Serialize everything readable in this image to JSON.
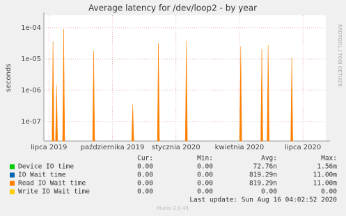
{
  "chart_data": {
    "type": "spike",
    "title": "Average latency for /dev/loop2 - by year",
    "y_label": "seconds",
    "side_label": "RRDTOOL / TOBI OETIKER",
    "log_y": true,
    "grid": true,
    "ylim": [
      2.4e-08,
      0.00025
    ],
    "yticks": [
      {
        "value": 1e-07,
        "label": "1e-07"
      },
      {
        "value": 1e-06,
        "label": "1e-06"
      },
      {
        "value": 1e-05,
        "label": "1e-05"
      },
      {
        "value": 0.0001,
        "label": "1e-04"
      }
    ],
    "xlim": [
      2019.48,
      2020.59
    ],
    "xticks": [
      {
        "value": 2019.5,
        "label": "lipca 2019"
      },
      {
        "value": 2019.75,
        "label": "października 2019"
      },
      {
        "value": 2020.0,
        "label": "stycznia 2020"
      },
      {
        "value": 2020.25,
        "label": "kwietnia 2020"
      },
      {
        "value": 2020.5,
        "label": "lipca 2020"
      }
    ],
    "stat_headers": [
      "Cur:",
      "Min:",
      "Avg:",
      "Max:"
    ],
    "series": [
      {
        "name": "Device IO time",
        "color": "#00cc00",
        "stats": [
          "0.00",
          "0.00",
          "72.76n",
          "1.56m"
        ]
      },
      {
        "name": "IO Wait time",
        "color": "#0066b3",
        "stats": [
          "0.00",
          "0.00",
          "819.29n",
          "11.00m"
        ]
      },
      {
        "name": "Read IO Wait time",
        "color": "#ff8000",
        "stats": [
          "0.00",
          "0.00",
          "819.29n",
          "11.00m"
        ],
        "x": [
          2019.516,
          2019.53,
          2019.558,
          2019.676,
          2019.83,
          2019.931,
          2020.041,
          2020.255,
          2020.338,
          2020.363,
          2020.456
        ],
        "values": [
          3.7e-05,
          1.5e-06,
          9e-05,
          1.8e-05,
          3.5e-07,
          3.2e-05,
          3.8e-05,
          2.6e-05,
          2.1e-05,
          2.8e-05,
          1.1e-05
        ]
      },
      {
        "name": "Write IO Wait time",
        "color": "#ffcc00",
        "stats": [
          "0.00",
          "0.00",
          "0.00",
          "0.00"
        ]
      }
    ],
    "last_update": "Last update: Sun Aug 16 04:02:52 2020",
    "footer": "Munin 2.0.49"
  }
}
